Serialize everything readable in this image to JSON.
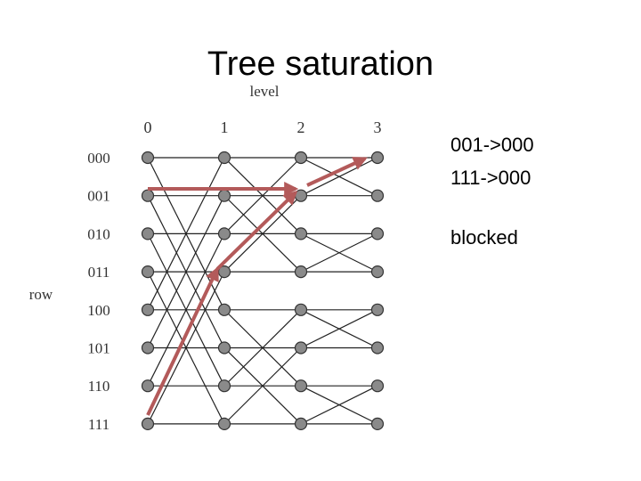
{
  "title": "Tree saturation",
  "diagram": {
    "axis_label_level": "level",
    "axis_label_row": "row",
    "levels": [
      "0",
      "1",
      "2",
      "3"
    ],
    "rows": [
      "000",
      "001",
      "010",
      "011",
      "100",
      "101",
      "110",
      "111"
    ]
  },
  "annotations": [
    "001->000",
    "111->000",
    "blocked"
  ]
}
